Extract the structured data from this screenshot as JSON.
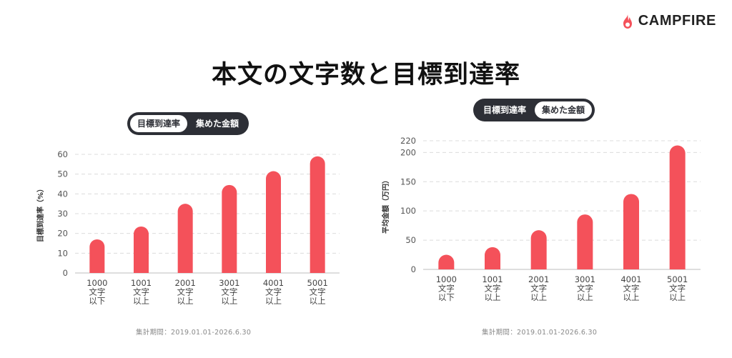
{
  "brand": {
    "name": "CAMPFIRE",
    "icon": "flame-icon",
    "color": "#f4515a"
  },
  "title": "本文の文字数と目標到達率",
  "bar_color": "#f4515a",
  "left": {
    "toggle": [
      {
        "label": "目標到達率",
        "active": true
      },
      {
        "label": "集めた金額",
        "active": false
      }
    ],
    "period": "集計期間：2019.01.01-2026.6.30"
  },
  "right": {
    "toggle": [
      {
        "label": "目標到達率",
        "active": false
      },
      {
        "label": "集めた金額",
        "active": true
      }
    ],
    "period": "集計期間：2019.01.01-2026.6.30"
  },
  "chart_data": [
    {
      "type": "bar",
      "categories": [
        "1000\n文字\n以下",
        "1001\n文字\n以上",
        "2001\n文字\n以上",
        "3001\n文字\n以上",
        "4001\n文字\n以上",
        "5001\n文字\n以上"
      ],
      "values": [
        17,
        23.5,
        35,
        44.5,
        51.5,
        59
      ],
      "ylabel": "目標到達率（%）",
      "ylim": [
        0,
        60
      ],
      "yticks": [
        0,
        10,
        20,
        30,
        40,
        50,
        60
      ],
      "grid": true
    },
    {
      "type": "bar",
      "categories": [
        "1000\n文字\n以下",
        "1001\n文字\n以上",
        "2001\n文字\n以上",
        "3001\n文字\n以上",
        "4001\n文字\n以上",
        "5001\n文字\n以上"
      ],
      "values": [
        25,
        38,
        67,
        94,
        129,
        212
      ],
      "ylabel": "平均金額（万円）",
      "ylim": [
        0,
        220
      ],
      "yticks": [
        0,
        50,
        100,
        150,
        200,
        220
      ],
      "grid": true
    }
  ]
}
